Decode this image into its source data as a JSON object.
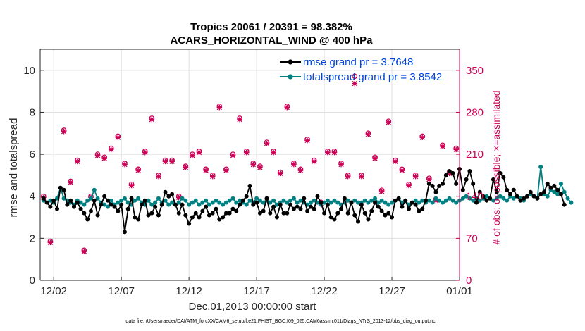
{
  "chart_data": {
    "type": "line",
    "title_line1": "Tropics 20061 / 20391 = 98.382%",
    "title_line2": "ACARS_HORIZONTAL_WIND @ 400 hPa",
    "xlabel": "Dec.01,2013 00:00:00 start",
    "ylabel": "rmse and totalspread",
    "ylabel_right": "# of obs: o=possible; ×=assimilated",
    "xlim": [
      0,
      31
    ],
    "ylim": [
      0,
      11
    ],
    "ylim_right": [
      0,
      385
    ],
    "x_ticks": [
      1,
      6,
      11,
      16,
      21,
      26,
      31
    ],
    "x_tick_labels": [
      "12/02",
      "12/07",
      "12/12",
      "12/17",
      "12/22",
      "12/27",
      "01/01"
    ],
    "y_ticks": [
      0,
      2,
      4,
      6,
      8,
      10
    ],
    "y_tick_labels": [
      "0",
      "2",
      "4",
      "6",
      "8",
      "10"
    ],
    "y_ticks_right": [
      0,
      70,
      140,
      210,
      280,
      350
    ],
    "y_tick_labels_right": [
      "0",
      "70",
      "140",
      "210",
      "280",
      "350"
    ],
    "grid": true,
    "legend_position": "top-right",
    "series": [
      {
        "name": "rmse",
        "legend_label": "rmse grand pr = 3.7648",
        "color": "#000000",
        "step": 0.25,
        "values": [
          3.9,
          3.7,
          3.5,
          3.8,
          3.4,
          4.4,
          4.3,
          3.6,
          3.8,
          3.5,
          3.7,
          3.4,
          3.2,
          2.9,
          3.3,
          3.8,
          3.1,
          3.6,
          4.0,
          3.8,
          3.6,
          3.5,
          3.3,
          3.6,
          2.3,
          3.4,
          3.9,
          3.0,
          2.9,
          3.6,
          3.8,
          3.1,
          3.2,
          3.5,
          3.1,
          3.6,
          4.2,
          4.0,
          4.1,
          3.6,
          3.2,
          3.6,
          3.1,
          2.7,
          3.0,
          3.2,
          3.0,
          3.3,
          3.5,
          3.1,
          3.2,
          3.4,
          2.9,
          3.0,
          3.2,
          3.2,
          3.4,
          3.3,
          3.6,
          3.8,
          4.0,
          4.5,
          3.6,
          3.7,
          3.2,
          3.3,
          3.9,
          3.2,
          3.5,
          3.0,
          3.6,
          3.2,
          3.2,
          3.6,
          3.4,
          3.5,
          3.4,
          3.9,
          3.3,
          3.5,
          3.4,
          4.0,
          3.7,
          3.2,
          3.6,
          3.0,
          2.9,
          3.2,
          3.4,
          3.9,
          3.2,
          3.7,
          3.1,
          2.8,
          3.6,
          3.2,
          2.9,
          3.3,
          3.7,
          3.5,
          3.3,
          3.1,
          3.2,
          3.0,
          3.8,
          3.9,
          3.5,
          3.8,
          3.4,
          3.7,
          3.6,
          3.3,
          3.4,
          3.8,
          4.6,
          4.5,
          4.2,
          4.5,
          4.6,
          5.0,
          5.2,
          5.1,
          4.6,
          5.3,
          4.3,
          4.8,
          5.2,
          4.6,
          3.7,
          4.2,
          4.0,
          3.8,
          3.9,
          4.8,
          4.2,
          5.1,
          4.9,
          4.3,
          4.1,
          4.3,
          4.0,
          3.8,
          3.9,
          4.0,
          4.2,
          4.0,
          3.9,
          4.1,
          4.2,
          4.6,
          4.4,
          4.5,
          4.3,
          4.1,
          3.6
        ]
      },
      {
        "name": "totalspread",
        "legend_label": "totalspread grand pr = 3.8542",
        "color": "#008080",
        "step": 0.25,
        "values": [
          3.8,
          3.7,
          3.8,
          3.7,
          3.9,
          4.4,
          3.9,
          3.8,
          3.7,
          3.6,
          3.8,
          3.7,
          3.6,
          3.8,
          3.9,
          4.3,
          3.9,
          3.7,
          3.6,
          3.5,
          3.8,
          3.6,
          3.7,
          3.8,
          3.9,
          3.7,
          3.6,
          3.8,
          3.9,
          3.7,
          3.6,
          3.8,
          3.6,
          3.7,
          3.9,
          3.7,
          3.8,
          3.6,
          3.7,
          3.6,
          3.7,
          3.9,
          3.8,
          3.6,
          3.7,
          3.8,
          3.6,
          3.7,
          3.8,
          3.6,
          3.7,
          3.8,
          3.7,
          3.6,
          3.7,
          3.8,
          3.9,
          3.7,
          3.8,
          3.7,
          3.6,
          3.8,
          3.7,
          3.9,
          3.8,
          3.7,
          3.8,
          3.7,
          3.8,
          3.6,
          3.7,
          3.8,
          3.7,
          3.8,
          3.9,
          3.7,
          3.8,
          3.7,
          3.6,
          3.7,
          3.8,
          3.7,
          3.6,
          3.7,
          3.8,
          3.7,
          3.8,
          3.7,
          3.6,
          3.7,
          3.8,
          3.7,
          3.8,
          3.7,
          3.7,
          3.8,
          3.7,
          3.8,
          3.9,
          3.7,
          3.8,
          3.7,
          3.6,
          3.7,
          3.8,
          3.9,
          3.7,
          3.8,
          3.6,
          3.7,
          3.8,
          3.7,
          3.8,
          3.7,
          3.8,
          3.7,
          3.9,
          3.8,
          3.7,
          3.8,
          3.9,
          3.8,
          3.7,
          3.8,
          3.9,
          4.0,
          3.9,
          3.8,
          3.9,
          3.8,
          3.9,
          4.0,
          3.9,
          3.8,
          3.9,
          4.0,
          3.9,
          3.8,
          4.0,
          3.9,
          4.0,
          3.9,
          3.8,
          4.0,
          4.1,
          4.0,
          3.9,
          5.4,
          4.1,
          4.0,
          4.3,
          4.2,
          4.1,
          4.6,
          4.2,
          3.9,
          3.7
        ]
      }
    ],
    "obs_color": "#cc0055",
    "obs_possible": {
      "name": "possible",
      "x": [
        0.25,
        0.75,
        1.75,
        2.25,
        2.75,
        3.25,
        3.75,
        4.25,
        4.75,
        5.25,
        5.75,
        6.25,
        6.75,
        7.25,
        7.75,
        8.25,
        8.75,
        9.25,
        9.75,
        10.25,
        10.75,
        11.25,
        11.75,
        12.25,
        12.75,
        13.25,
        13.75,
        14.25,
        14.75,
        15.25,
        15.75,
        16.25,
        16.75,
        17.25,
        17.75,
        18.25,
        18.75,
        19.25,
        19.75,
        20.25,
        20.75,
        21.25,
        21.75,
        22.25,
        22.75,
        23.25,
        23.75,
        24.25,
        24.75,
        25.25,
        25.75,
        26.25,
        26.75,
        27.25,
        27.75,
        28.25,
        28.75,
        29.25,
        29.75,
        30.25,
        30.75
      ],
      "values": [
        140,
        65,
        250,
        165,
        200,
        50,
        140,
        210,
        205,
        220,
        240,
        195,
        160,
        185,
        215,
        270,
        175,
        200,
        200,
        140,
        190,
        210,
        215,
        185,
        175,
        290,
        185,
        210,
        270,
        215,
        195,
        190,
        230,
        215,
        180,
        290,
        195,
        185,
        235,
        200,
        130,
        215,
        215,
        195,
        175,
        340,
        175,
        245,
        205,
        150,
        265,
        200,
        185,
        160,
        175,
        240,
        170,
        135,
        225,
        180,
        220
      ]
    },
    "obs_assimilated": {
      "name": "assimilated",
      "x": [
        0.25,
        0.75,
        1.75,
        2.25,
        2.75,
        3.25,
        3.75,
        4.25,
        4.75,
        5.25,
        5.75,
        6.25,
        6.75,
        7.25,
        7.75,
        8.25,
        8.75,
        9.25,
        9.75,
        10.25,
        10.75,
        11.25,
        11.75,
        12.25,
        12.75,
        13.25,
        13.75,
        14.25,
        14.75,
        15.25,
        15.75,
        16.25,
        16.75,
        17.25,
        17.75,
        18.25,
        18.75,
        19.25,
        19.75,
        20.25,
        20.75,
        21.25,
        21.75,
        22.25,
        22.75,
        23.25,
        23.75,
        24.25,
        24.75,
        25.25,
        25.75,
        26.25,
        26.75,
        27.25,
        27.75,
        28.25,
        28.75,
        29.25,
        29.75,
        30.25,
        30.75
      ],
      "values": [
        138,
        63,
        248,
        163,
        198,
        48,
        138,
        208,
        203,
        218,
        238,
        193,
        158,
        183,
        213,
        268,
        173,
        198,
        198,
        138,
        188,
        208,
        213,
        183,
        173,
        288,
        183,
        208,
        268,
        213,
        193,
        188,
        228,
        213,
        178,
        288,
        193,
        183,
        233,
        198,
        128,
        213,
        213,
        193,
        173,
        328,
        173,
        243,
        203,
        148,
        263,
        198,
        183,
        158,
        173,
        238,
        168,
        133,
        223,
        178,
        218
      ]
    }
  },
  "footnote": "data file: /Users/raeder/DAI/ATM_forcXX/CAM6_setup/f.e21.FHIST_BGC.f09_025.CAM6assim.011/Diags_NTrS_2013-12/obs_diag_output.nc"
}
